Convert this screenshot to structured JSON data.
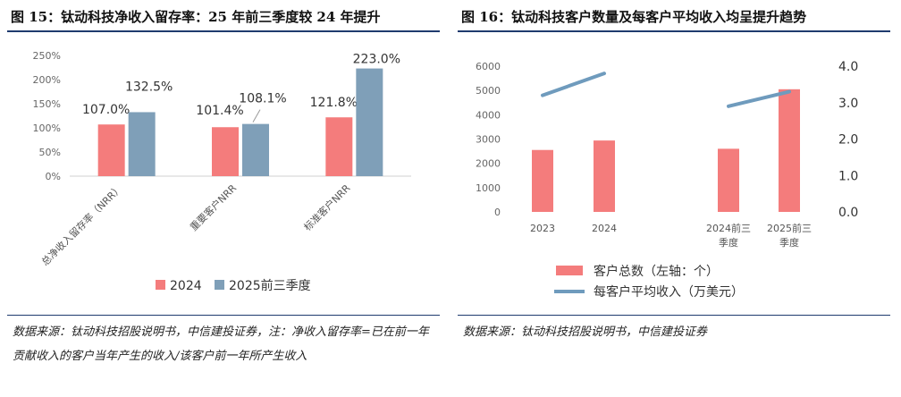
{
  "left_panel": {
    "title": "图 15：钛动科技净收入留存率：25 年前三季度较 24 年提升",
    "source": "数据来源：钛动科技招股说明书，中信建投证券，注：净收入留存率=已在前一年贡献收入的客户当年产生的收入/该客户前一年所产生收入"
  },
  "right_panel": {
    "title": "图 16：钛动科技客户数量及每客户平均收入均呈提升趋势",
    "source": "数据来源：钛动科技招股说明书，中信建投证券"
  },
  "colors": {
    "bar_a": "#f47c7c",
    "bar_b": "#7f9fb8",
    "line": "#6f9bbd",
    "rule": "#1f3b6e"
  },
  "chart_data": [
    {
      "type": "bar",
      "title": "",
      "categories": [
        "总净收入留存率（NRR）",
        "重要客户NRR",
        "标准客户NRR"
      ],
      "series": [
        {
          "name": "2024",
          "values": [
            107.0,
            101.4,
            121.8
          ],
          "labels": [
            "107.0%",
            "101.4%",
            "121.8%"
          ]
        },
        {
          "name": "2025前三季度",
          "values": [
            132.5,
            108.1,
            223.0
          ],
          "labels": [
            "132.5%",
            "108.1%",
            "223.0%"
          ]
        }
      ],
      "yticks": [
        "0%",
        "50%",
        "100%",
        "150%",
        "200%",
        "250%"
      ],
      "ylim": [
        0,
        250
      ],
      "grid": false,
      "legend": "bottom"
    },
    {
      "type": "bar",
      "title": "",
      "categories": [
        "2023",
        "2024",
        "2024前三季度",
        "2025前三季度"
      ],
      "category_lines": [
        [
          "2023"
        ],
        [
          "2024"
        ],
        [
          "2024前三",
          "季度"
        ],
        [
          "2025前三",
          "季度"
        ]
      ],
      "series": [
        {
          "name": "客户总数（左轴：个）",
          "type": "bar",
          "axis": "left",
          "values": [
            2550,
            2940,
            2600,
            5050
          ]
        },
        {
          "name": "每客户平均收入（万美元）",
          "type": "line",
          "axis": "right",
          "values": [
            3.2,
            3.8,
            2.9,
            3.3
          ]
        }
      ],
      "line_segments": [
        [
          0,
          1
        ],
        [
          2,
          3
        ]
      ],
      "yticks_left": [
        "0",
        "1000",
        "2000",
        "3000",
        "4000",
        "5000",
        "6000"
      ],
      "ylim_left": [
        0,
        6000
      ],
      "yticks_right": [
        "0.0",
        "1.0",
        "2.0",
        "3.0",
        "4.0"
      ],
      "ylim_right": [
        0,
        4
      ],
      "grid": false,
      "legend": "bottom"
    }
  ]
}
